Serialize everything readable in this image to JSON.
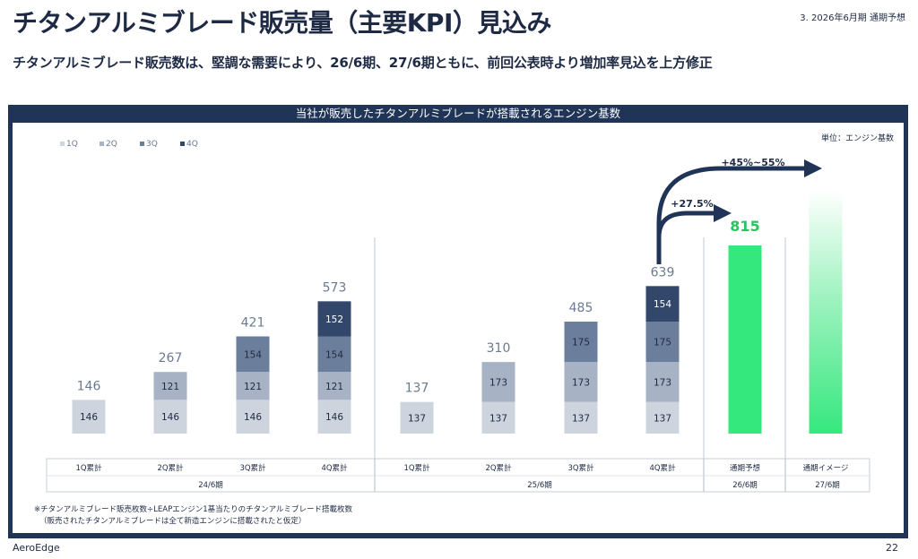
{
  "header": {
    "title": "チタンアルミブレード販売量（主要KPI）見込み",
    "section": "3. 2026年6月期 通期予想",
    "subtitle": "チタンアルミブレード販売数は、堅調な需要により、26/6期、27/6期ともに、前回公表時より増加率見込を上方修正"
  },
  "panel": {
    "title": "当社が販売したチタンアルミブレードが搭載されるエンジン基数"
  },
  "footer": {
    "company": "AeroEdge",
    "page": "22"
  },
  "chart_data": {
    "type": "bar",
    "title": "当社が販売したチタンアルミブレードが搭載されるエンジン基数",
    "unit": "単位：エンジン基数",
    "legend": [
      "1Q",
      "2Q",
      "3Q",
      "4Q"
    ],
    "colors": {
      "1Q": "#ced4de",
      "2Q": "#a7b3c5",
      "3Q": "#6b7f9c",
      "4Q": "#33476b",
      "forecast": "#35e87e",
      "forecast_label": "#27c45f",
      "arrow": "#1f3457",
      "total_label": "#6c7a90"
    },
    "stacked": [
      {
        "category": "1Q累計",
        "period": "24/6期",
        "values": [
          146
        ],
        "total": "146"
      },
      {
        "category": "2Q累計",
        "period": "24/6期",
        "values": [
          146,
          121
        ],
        "total": "267"
      },
      {
        "category": "3Q累計",
        "period": "24/6期",
        "values": [
          146,
          121,
          154
        ],
        "total": "421"
      },
      {
        "category": "4Q累計",
        "period": "24/6期",
        "values": [
          146,
          121,
          154,
          152
        ],
        "total": "573"
      },
      {
        "category": "1Q累計",
        "period": "25/6期",
        "values": [
          137
        ],
        "total": "137"
      },
      {
        "category": "2Q累計",
        "period": "25/6期",
        "values": [
          137,
          173
        ],
        "total": "310"
      },
      {
        "category": "3Q累計",
        "period": "25/6期",
        "values": [
          137,
          173,
          175
        ],
        "total": "485"
      },
      {
        "category": "4Q累計",
        "period": "25/6期",
        "values": [
          137,
          173,
          175,
          154
        ],
        "total": "639"
      }
    ],
    "forecast": [
      {
        "category": "通期予想",
        "period": "26/6期",
        "value": 815,
        "label": "815"
      },
      {
        "category": "通期イメージ",
        "period": "27/6期",
        "value": null,
        "label": ""
      }
    ],
    "periods": [
      "24/6期",
      "25/6期",
      "26/6期",
      "27/6期"
    ],
    "annotations": {
      "growth_26": "+27.5%",
      "growth_27": "+45%~55%"
    },
    "notes": [
      "※チタンアルミブレード販売枚数÷LEAPエンジン1基当たりのチタンアルミブレード搭載枚数",
      "（販売されたチタンアルミブレードは全て新造エンジンに搭載されたと仮定）"
    ]
  }
}
